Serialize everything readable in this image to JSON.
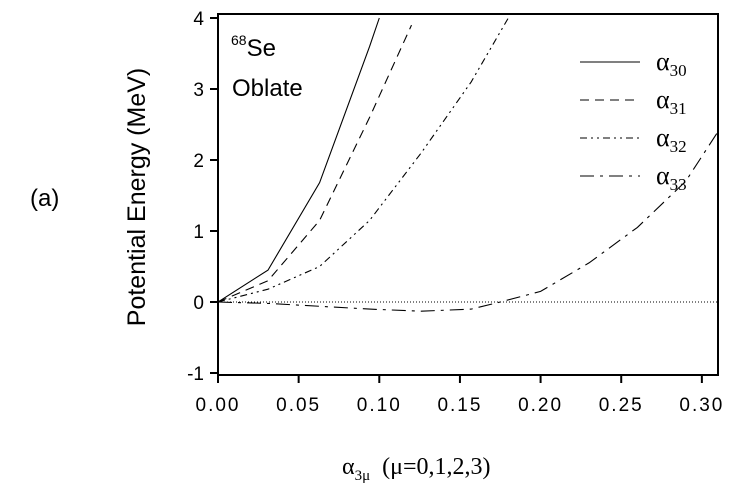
{
  "panel_label": "(a)",
  "nucleus": {
    "mass_number": "68",
    "symbol": "Se",
    "shape": "Oblate"
  },
  "chart_data": {
    "type": "line",
    "title": "",
    "ylabel": "Potential Energy (MeV)",
    "xlabel": {
      "symbol": "α",
      "subscript": "3μ",
      "suffix": "(μ=0,1,2,3)"
    },
    "xlim": [
      0.0,
      0.31
    ],
    "ylim": [
      -1.2,
      4.0
    ],
    "x_ticks": [
      "0.00",
      "0.05",
      "0.10",
      "0.15",
      "0.20",
      "0.25",
      "0.30"
    ],
    "y_ticks": [
      "-1",
      "0",
      "1",
      "2",
      "3",
      "4"
    ],
    "reference_line_y": 0,
    "legend_position": "top-right",
    "series": [
      {
        "name": "α30",
        "name_symbol": "α",
        "name_subscript": "30",
        "dash": "solid",
        "points": [
          [
            0.0,
            0.0
          ],
          [
            0.031,
            0.45
          ],
          [
            0.063,
            1.68
          ],
          [
            0.094,
            3.6
          ],
          [
            0.1,
            4.0
          ]
        ]
      },
      {
        "name": "α31",
        "name_symbol": "α",
        "name_subscript": "31",
        "dash": "dashed",
        "points": [
          [
            0.0,
            0.0
          ],
          [
            0.031,
            0.3
          ],
          [
            0.063,
            1.15
          ],
          [
            0.094,
            2.6
          ],
          [
            0.12,
            3.9
          ]
        ]
      },
      {
        "name": "α32",
        "name_symbol": "α",
        "name_subscript": "32",
        "dash": "dash-dot-dot",
        "points": [
          [
            0.0,
            0.0
          ],
          [
            0.031,
            0.18
          ],
          [
            0.063,
            0.5
          ],
          [
            0.094,
            1.15
          ],
          [
            0.126,
            2.1
          ],
          [
            0.157,
            3.1
          ],
          [
            0.18,
            4.0
          ]
        ]
      },
      {
        "name": "α33",
        "name_symbol": "α",
        "name_subscript": "33",
        "dash": "dash-dot",
        "points": [
          [
            0.0,
            0.0
          ],
          [
            0.031,
            -0.02
          ],
          [
            0.063,
            -0.06
          ],
          [
            0.094,
            -0.1
          ],
          [
            0.126,
            -0.13
          ],
          [
            0.157,
            -0.1
          ],
          [
            0.175,
            0.0
          ],
          [
            0.2,
            0.15
          ],
          [
            0.23,
            0.55
          ],
          [
            0.26,
            1.05
          ],
          [
            0.29,
            1.7
          ],
          [
            0.31,
            2.4
          ]
        ]
      }
    ]
  }
}
